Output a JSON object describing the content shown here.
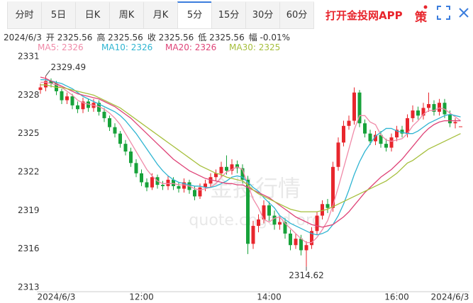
{
  "tabs": [
    "分时",
    "5日",
    "日K",
    "周K",
    "月K",
    "5分",
    "15分",
    "30分",
    "60分"
  ],
  "selected_tab": 5,
  "app_link": "打开金投网APP",
  "icon_text": "策",
  "info": {
    "date": "2024/6/3",
    "items": [
      "开 2325.56",
      "高 2325.56",
      "收 2325.56",
      "低 2325.56",
      "幅 -0.01%"
    ]
  },
  "chart_data": {
    "type": "candlestick",
    "categories": [
      null,
      null,
      null,
      "2024/6/3",
      null,
      null,
      null,
      null,
      null,
      null,
      null,
      null,
      null,
      null,
      null,
      null,
      null,
      null,
      null,
      "12:00",
      null,
      null,
      null,
      null,
      null,
      null,
      null,
      null,
      null,
      null,
      null,
      null,
      null,
      null,
      null,
      null,
      null,
      null,
      null,
      null,
      null,
      null,
      null,
      "14:00",
      null,
      null,
      null,
      null,
      null,
      null,
      null,
      null,
      null,
      null,
      null,
      null,
      null,
      null,
      null,
      null,
      null,
      null,
      null,
      null,
      null,
      null,
      null,
      "16:00",
      null,
      null,
      null,
      null,
      null,
      null,
      null,
      null,
      null,
      "2024/6/3",
      null,
      null
    ],
    "open": [
      2328.4,
      2328.6,
      2329.1,
      2328.9,
      2328.3,
      2327.6,
      2327.9,
      2327.2,
      2326.9,
      2327.5,
      2327.0,
      2327.4,
      2326.7,
      2326.2,
      2325.5,
      2325.0,
      2324.2,
      2323.6,
      2322.7,
      2321.9,
      2321.2,
      2320.8,
      2321.6,
      2321.0,
      2320.9,
      2321.4,
      2320.9,
      2320.7,
      2321.2,
      2320.6,
      2320.1,
      2320.8,
      2321.1,
      2321.6,
      2321.9,
      2322.4,
      2322.1,
      2322.6,
      2322.3,
      2321.4,
      2316.4,
      2317.8,
      2318.3,
      2319.4,
      2318.6,
      2317.9,
      2318.1,
      2317.2,
      2316.3,
      2316.8,
      2315.9,
      2316.3,
      2317.4,
      2318.6,
      2319.5,
      2319.2,
      2322.4,
      2324.3,
      2325.6,
      2326.0,
      2328.2,
      2325.8,
      2325.0,
      2324.4,
      2324.9,
      2324.2,
      2323.9,
      2324.7,
      2325.3,
      2325.0,
      2326.2,
      2326.8,
      2326.4,
      2327.0,
      2327.3,
      2326.7,
      2327.4,
      2326.5,
      2325.8,
      2325.56
    ],
    "high": [
      2328.9,
      2329.49,
      2329.3,
      2329.1,
      2328.5,
      2328.2,
      2328.1,
      2327.5,
      2327.8,
      2327.7,
      2327.7,
      2327.6,
      2327.0,
      2326.4,
      2325.8,
      2325.2,
      2324.5,
      2323.9,
      2323.0,
      2322.2,
      2321.5,
      2321.9,
      2321.8,
      2321.3,
      2321.7,
      2321.6,
      2321.2,
      2321.5,
      2321.4,
      2320.9,
      2321.1,
      2321.4,
      2321.9,
      2322.2,
      2322.8,
      2323.3,
      2323.0,
      2322.9,
      2322.6,
      2321.7,
      2318.2,
      2318.7,
      2319.8,
      2319.7,
      2319.0,
      2318.6,
      2318.4,
      2317.5,
      2317.2,
      2317.1,
      2316.6,
      2317.7,
      2318.9,
      2319.8,
      2319.9,
      2322.8,
      2324.7,
      2326.0,
      2326.4,
      2328.6,
      2328.4,
      2326.1,
      2325.3,
      2325.2,
      2325.2,
      2324.6,
      2325.0,
      2325.6,
      2325.6,
      2326.5,
      2327.2,
      2327.1,
      2327.4,
      2328.2,
      2327.6,
      2327.7,
      2327.7,
      2326.8,
      2326.2,
      2325.56
    ],
    "low": [
      2328.1,
      2328.3,
      2328.6,
      2328.0,
      2327.3,
      2327.3,
      2326.9,
      2326.6,
      2326.6,
      2326.7,
      2326.7,
      2326.4,
      2325.9,
      2325.2,
      2324.7,
      2323.9,
      2323.3,
      2322.4,
      2321.6,
      2320.9,
      2320.5,
      2320.6,
      2320.7,
      2320.6,
      2320.6,
      2320.6,
      2320.4,
      2320.4,
      2320.3,
      2319.8,
      2319.9,
      2320.5,
      2320.8,
      2321.3,
      2321.6,
      2321.8,
      2321.8,
      2321.9,
      2321.1,
      2315.6,
      2316.0,
      2317.3,
      2318.0,
      2318.2,
      2317.5,
      2317.5,
      2316.8,
      2315.9,
      2316.0,
      2315.5,
      2314.62,
      2316.0,
      2317.1,
      2318.3,
      2318.8,
      2318.9,
      2322.1,
      2324.0,
      2325.3,
      2325.7,
      2325.5,
      2324.7,
      2324.1,
      2324.1,
      2323.9,
      2323.6,
      2323.6,
      2324.4,
      2324.7,
      2324.7,
      2325.9,
      2326.1,
      2326.1,
      2326.7,
      2326.4,
      2326.4,
      2326.2,
      2325.5,
      2325.4,
      2325.56
    ],
    "close": [
      2328.6,
      2329.1,
      2328.9,
      2328.3,
      2327.6,
      2327.9,
      2327.2,
      2326.9,
      2327.5,
      2327.0,
      2327.4,
      2326.7,
      2326.2,
      2325.5,
      2325.0,
      2324.2,
      2323.6,
      2322.7,
      2321.9,
      2321.2,
      2320.8,
      2321.6,
      2321.0,
      2320.9,
      2321.4,
      2320.9,
      2320.7,
      2321.2,
      2320.6,
      2320.1,
      2320.8,
      2321.1,
      2321.6,
      2321.9,
      2322.4,
      2322.1,
      2322.6,
      2322.3,
      2321.4,
      2316.4,
      2317.8,
      2318.3,
      2319.4,
      2318.6,
      2317.9,
      2318.1,
      2317.2,
      2316.3,
      2316.8,
      2315.9,
      2316.3,
      2317.4,
      2318.6,
      2319.5,
      2319.2,
      2322.4,
      2324.3,
      2325.6,
      2326.0,
      2328.2,
      2325.8,
      2325.0,
      2324.4,
      2324.9,
      2324.2,
      2323.9,
      2324.7,
      2325.3,
      2325.0,
      2326.2,
      2326.8,
      2326.4,
      2327.0,
      2327.3,
      2326.7,
      2327.4,
      2326.5,
      2325.8,
      2325.9,
      2325.56
    ],
    "series": [
      {
        "name": "MA5: 2326",
        "color": "#f08aa8",
        "values": [
          2329.0,
          2329.0,
          2328.9,
          2328.8,
          2328.6,
          2328.3,
          2328.0,
          2327.6,
          2327.4,
          2327.3,
          2327.2,
          2327.1,
          2326.9,
          2326.6,
          2326.2,
          2325.7,
          2325.0,
          2324.3,
          2323.6,
          2322.9,
          2322.2,
          2321.7,
          2321.3,
          2321.1,
          2321.1,
          2321.1,
          2321.0,
          2321.0,
          2320.9,
          2320.7,
          2320.6,
          2320.7,
          2320.8,
          2321.1,
          2321.6,
          2322.0,
          2322.2,
          2322.4,
          2322.2,
          2321.0,
          2319.9,
          2319.2,
          2318.3,
          2318.1,
          2318.4,
          2318.5,
          2318.0,
          2317.6,
          2317.2,
          2316.8,
          2316.5,
          2316.5,
          2316.9,
          2317.5,
          2318.2,
          2319.4,
          2320.8,
          2322.3,
          2323.8,
          2325.3,
          2326.4,
          2326.4,
          2325.9,
          2325.7,
          2324.9,
          2324.5,
          2324.4,
          2324.5,
          2324.6,
          2325.0,
          2325.6,
          2326.0,
          2326.5,
          2326.8,
          2326.8,
          2327.0,
          2326.9,
          2326.6,
          2326.3,
          2326.0
        ]
      },
      {
        "name": "MA10: 2326",
        "color": "#2fb5d2",
        "values": [
          2329.2,
          2329.2,
          2329.1,
          2329.0,
          2328.9,
          2328.7,
          2328.5,
          2328.2,
          2327.9,
          2327.7,
          2327.5,
          2327.3,
          2327.1,
          2326.9,
          2326.7,
          2326.4,
          2326.0,
          2325.5,
          2325.0,
          2324.4,
          2323.8,
          2323.2,
          2322.6,
          2322.1,
          2321.7,
          2321.4,
          2321.2,
          2321.1,
          2321.0,
          2320.9,
          2320.9,
          2320.8,
          2320.8,
          2320.9,
          2321.1,
          2321.3,
          2321.6,
          2321.7,
          2321.6,
          2321.2,
          2320.8,
          2320.5,
          2320.0,
          2319.6,
          2319.2,
          2318.6,
          2318.3,
          2318.0,
          2317.8,
          2317.6,
          2317.4,
          2317.2,
          2317.1,
          2317.2,
          2317.4,
          2317.9,
          2318.6,
          2319.5,
          2320.6,
          2321.8,
          2322.8,
          2323.6,
          2324.2,
          2324.8,
          2325.1,
          2325.4,
          2325.4,
          2325.2,
          2325.1,
          2325.0,
          2325.0,
          2325.2,
          2325.5,
          2325.8,
          2326.0,
          2326.2,
          2326.4,
          2326.5,
          2326.4,
          2326.3
        ]
      },
      {
        "name": "MA20: 2326",
        "color": "#df4478",
        "values": [
          2329.4,
          2329.3,
          2329.1,
          2328.9,
          2328.7,
          2328.5,
          2328.3,
          2328.1,
          2328.0,
          2327.9,
          2327.8,
          2327.7,
          2327.5,
          2327.3,
          2327.1,
          2326.8,
          2326.5,
          2326.2,
          2325.8,
          2325.4,
          2325.0,
          2324.6,
          2324.2,
          2323.8,
          2323.4,
          2323.0,
          2322.7,
          2322.4,
          2322.1,
          2321.9,
          2321.7,
          2321.5,
          2321.4,
          2321.3,
          2321.2,
          2321.1,
          2321.1,
          2321.0,
          2321.0,
          2320.8,
          2320.6,
          2320.4,
          2320.2,
          2320.0,
          2319.7,
          2319.4,
          2319.1,
          2318.8,
          2318.5,
          2318.3,
          2318.1,
          2317.9,
          2317.8,
          2317.7,
          2317.8,
          2317.9,
          2318.2,
          2318.5,
          2318.9,
          2319.4,
          2319.9,
          2320.4,
          2320.8,
          2321.2,
          2321.6,
          2321.9,
          2322.2,
          2322.6,
          2323.0,
          2323.5,
          2324.0,
          2324.5,
          2325.0,
          2325.4,
          2325.7,
          2325.9,
          2326.0,
          2326.0,
          2326.0,
          2326.0
        ]
      },
      {
        "name": "MA30: 2325",
        "color": "#a6bf3c",
        "values": [
          2328.8,
          2328.8,
          2328.7,
          2328.6,
          2328.6,
          2328.5,
          2328.4,
          2328.3,
          2328.2,
          2328.1,
          2328.0,
          2327.8,
          2327.6,
          2327.4,
          2327.2,
          2327.0,
          2326.7,
          2326.4,
          2326.1,
          2325.8,
          2325.5,
          2325.2,
          2324.9,
          2324.6,
          2324.3,
          2324.0,
          2323.7,
          2323.4,
          2323.1,
          2322.8,
          2322.5,
          2322.3,
          2322.1,
          2321.9,
          2321.8,
          2321.6,
          2321.5,
          2321.4,
          2321.3,
          2321.0,
          2320.6,
          2320.3,
          2320.1,
          2319.9,
          2319.7,
          2319.5,
          2319.3,
          2319.1,
          2319.0,
          2318.9,
          2318.9,
          2318.9,
          2318.9,
          2319.0,
          2319.1,
          2319.3,
          2319.5,
          2319.7,
          2319.9,
          2320.1,
          2320.3,
          2320.5,
          2320.7,
          2320.9,
          2321.1,
          2321.3,
          2321.6,
          2321.9,
          2322.3,
          2322.7,
          2322.9,
          2323.2,
          2323.5,
          2323.8,
          2324.0,
          2324.2,
          2324.4,
          2324.6,
          2324.8,
          2325.0
        ]
      }
    ],
    "up_color": "#e8262d",
    "down_color": "#17a23a",
    "ylim": [
      2313,
      2331
    ],
    "yticks": [
      2313,
      2316,
      2319,
      2322,
      2325,
      2328,
      2331
    ],
    "grid": false,
    "watermark": [
      "金投行情",
      "quote.cngold.org"
    ]
  }
}
